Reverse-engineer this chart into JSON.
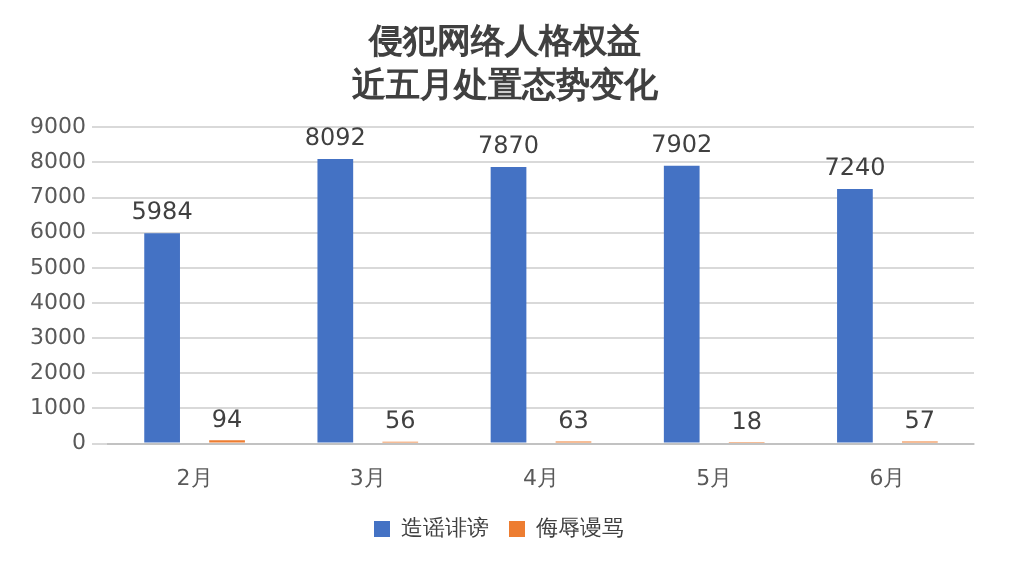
{
  "chart_data": {
    "type": "bar",
    "title": "侵犯网络人格权益",
    "subtitle": "近五月处置态势变化",
    "categories": [
      "2月",
      "3月",
      "4月",
      "5月",
      "6月"
    ],
    "series": [
      {
        "name": "造谣诽谤",
        "color": "#4472c4",
        "values": [
          5984,
          8092,
          7870,
          7902,
          7240
        ]
      },
      {
        "name": "侮辱谩骂",
        "color": "#ed7d31",
        "values": [
          94,
          56,
          63,
          18,
          57
        ]
      }
    ],
    "ylim": [
      0,
      9000
    ],
    "yticks": [
      0,
      1000,
      2000,
      3000,
      4000,
      5000,
      6000,
      7000,
      8000,
      9000
    ],
    "grid": "y",
    "legend": "bottom",
    "data_labels": true
  }
}
